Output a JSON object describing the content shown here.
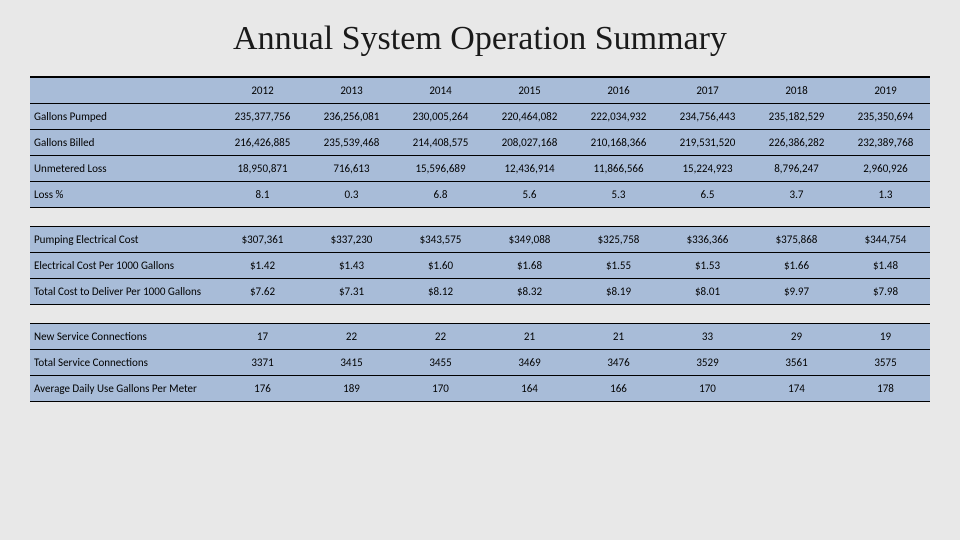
{
  "title": "Annual System Operation Summary",
  "table": {
    "header_bg": "#a8bcd8",
    "row_bg": "#a8bcd8",
    "border_color": "#000000",
    "years": [
      "2012",
      "2013",
      "2014",
      "2015",
      "2016",
      "2017",
      "2018",
      "2019"
    ],
    "sections": [
      {
        "rows": [
          {
            "label": "Gallons Pumped",
            "values": [
              "235,377,756",
              "236,256,081",
              "230,005,264",
              "220,464,082",
              "222,034,932",
              "234,756,443",
              "235,182,529",
              "235,350,694"
            ]
          },
          {
            "label": "Gallons Billed",
            "values": [
              "216,426,885",
              "235,539,468",
              "214,408,575",
              "208,027,168",
              "210,168,366",
              "219,531,520",
              "226,386,282",
              "232,389,768"
            ]
          },
          {
            "label": "Unmetered Loss",
            "values": [
              "18,950,871",
              "716,613",
              "15,596,689",
              "12,436,914",
              "11,866,566",
              "15,224,923",
              "8,796,247",
              "2,960,926"
            ]
          },
          {
            "label": "Loss %",
            "values": [
              "8.1",
              "0.3",
              "6.8",
              "5.6",
              "5.3",
              "6.5",
              "3.7",
              "1.3"
            ]
          }
        ]
      },
      {
        "rows": [
          {
            "label": "Pumping Electrical Cost",
            "values": [
              "$307,361",
              "$337,230",
              "$343,575",
              "$349,088",
              "$325,758",
              "$336,366",
              "$375,868",
              "$344,754"
            ]
          },
          {
            "label": "Electrical Cost Per 1000 Gallons",
            "values": [
              "$1.42",
              "$1.43",
              "$1.60",
              "$1.68",
              "$1.55",
              "$1.53",
              "$1.66",
              "$1.48"
            ]
          },
          {
            "label": "Total Cost to Deliver Per 1000 Gallons",
            "values": [
              "$7.62",
              "$7.31",
              "$8.12",
              "$8.32",
              "$8.19",
              "$8.01",
              "$9.97",
              "$7.98"
            ]
          }
        ]
      },
      {
        "rows": [
          {
            "label": "New Service Connections",
            "values": [
              "17",
              "22",
              "22",
              "21",
              "21",
              "33",
              "29",
              "19"
            ]
          },
          {
            "label": "Total Service Connections",
            "values": [
              "3371",
              "3415",
              "3455",
              "3469",
              "3476",
              "3529",
              "3561",
              "3575"
            ]
          },
          {
            "label": "Average Daily Use Gallons Per Meter",
            "values": [
              "176",
              "189",
              "170",
              "164",
              "166",
              "170",
              "174",
              "178"
            ]
          }
        ]
      }
    ]
  }
}
